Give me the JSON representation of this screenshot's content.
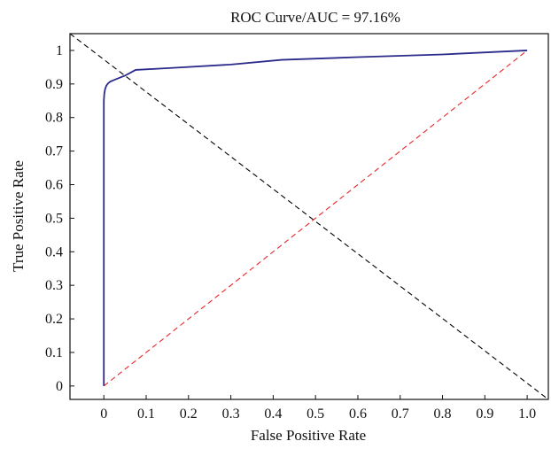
{
  "chart_data": {
    "type": "line",
    "title": "ROC Curve/AUC = 97.16%",
    "xlabel": "False Positive Rate",
    "ylabel": "True Positive Rate",
    "xlim": [
      -0.08,
      1.05
    ],
    "ylim": [
      -0.04,
      1.05
    ],
    "xticks": [
      0,
      0.1,
      0.2,
      0.3,
      0.4,
      0.5,
      0.6,
      0.7,
      0.8,
      0.9,
      1.0
    ],
    "xtick_labels": [
      "0",
      "0.1",
      "0.2",
      "0.3",
      "0.4",
      "0.5",
      "0.6",
      "0.7",
      "0.8",
      "0.9",
      "1.0"
    ],
    "yticks": [
      0,
      0.1,
      0.2,
      0.3,
      0.4,
      0.5,
      0.6,
      0.7,
      0.8,
      0.9,
      1
    ],
    "ytick_labels": [
      "0",
      "0.1",
      "0.2",
      "0.3",
      "0.4",
      "0.5",
      "0.6",
      "0.7",
      "0.8",
      "0.9",
      "1"
    ],
    "grid": false,
    "series": [
      {
        "color": "#2b2b8c",
        "style": "solid",
        "x": [
          0,
          0,
          0.001,
          0.003,
          0.006,
          0.01,
          0.015,
          0.03,
          0.05,
          0.065,
          0.075,
          0.15,
          0.3,
          0.42,
          0.6,
          0.8,
          1.0
        ],
        "y": [
          0,
          0.85,
          0.87,
          0.885,
          0.895,
          0.902,
          0.907,
          0.915,
          0.925,
          0.935,
          0.942,
          0.947,
          0.958,
          0.972,
          0.98,
          0.988,
          1.0
        ]
      },
      {
        "color": "#e8262a",
        "style": "dashed",
        "x": [
          0,
          1.0
        ],
        "y": [
          0,
          1.0
        ]
      },
      {
        "color": "#000000",
        "style": "dashed",
        "x": [
          -0.08,
          1.05
        ],
        "y": [
          1.05,
          -0.04
        ]
      }
    ]
  }
}
